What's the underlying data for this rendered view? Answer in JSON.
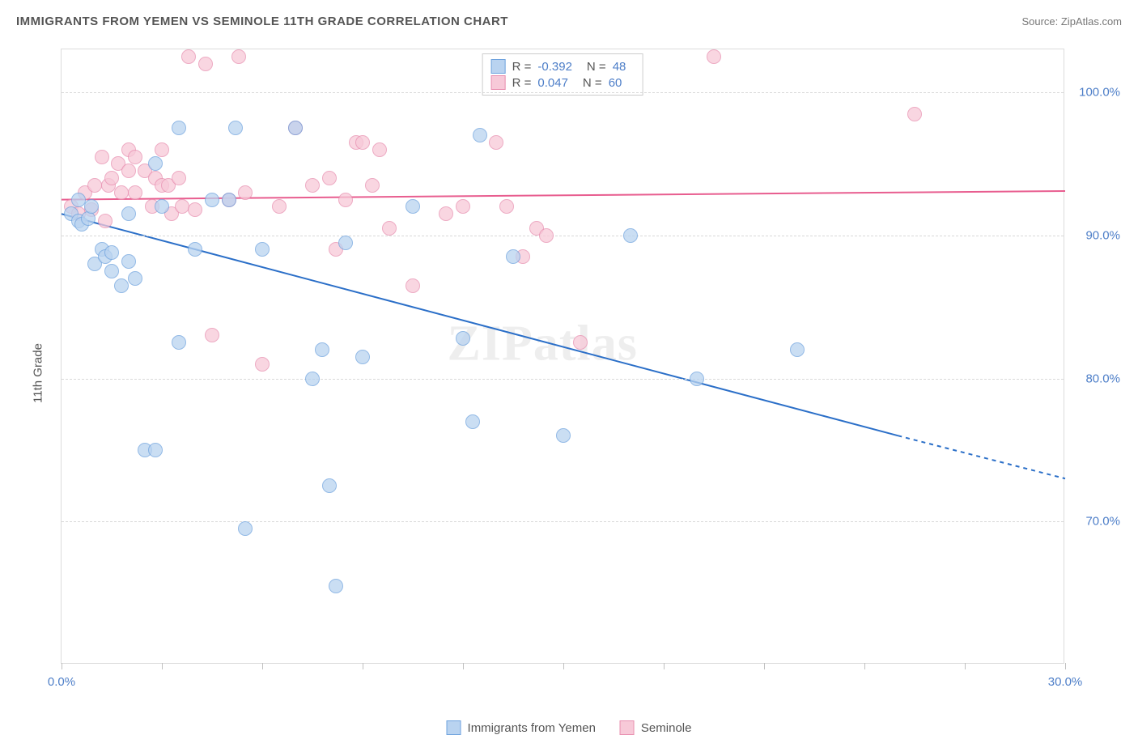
{
  "title": "IMMIGRANTS FROM YEMEN VS SEMINOLE 11TH GRADE CORRELATION CHART",
  "source": "Source: ZipAtlas.com",
  "ylabel": "11th Grade",
  "watermark": "ZIPatlas",
  "chart": {
    "type": "scatter",
    "xlim": [
      0,
      30
    ],
    "ylim": [
      60,
      103
    ],
    "x_ticks": [
      0,
      3,
      6,
      9,
      12,
      15,
      18,
      21,
      24,
      27,
      30
    ],
    "x_tick_labels": {
      "0": "0.0%",
      "30": "30.0%"
    },
    "y_ticks": [
      70,
      80,
      90,
      100
    ],
    "y_tick_labels": {
      "70": "70.0%",
      "80": "80.0%",
      "90": "90.0%",
      "100": "100.0%"
    },
    "grid_color": "#d8d8d8",
    "border_color": "#dcdcdc",
    "marker_radius": 9,
    "series": [
      {
        "key": "yemen",
        "label": "Immigrants from Yemen",
        "color_fill": "#b9d3f0",
        "color_stroke": "#6fa3de",
        "R": "-0.392",
        "N": "48",
        "trend": {
          "x1": 0,
          "y1": 91.5,
          "x2_solid": 25,
          "y2_solid": 76.0,
          "x2_dash": 30,
          "y2_dash": 73.0,
          "color": "#2b6fc8",
          "width": 2
        },
        "points": [
          [
            0.3,
            91.5
          ],
          [
            0.5,
            91.0
          ],
          [
            0.5,
            92.5
          ],
          [
            0.6,
            90.8
          ],
          [
            0.8,
            91.2
          ],
          [
            0.9,
            92.0
          ],
          [
            1.0,
            88.0
          ],
          [
            1.2,
            89.0
          ],
          [
            1.3,
            88.5
          ],
          [
            1.5,
            87.5
          ],
          [
            1.5,
            88.8
          ],
          [
            1.8,
            86.5
          ],
          [
            2.0,
            91.5
          ],
          [
            2.0,
            88.2
          ],
          [
            2.2,
            87.0
          ],
          [
            2.5,
            75.0
          ],
          [
            2.8,
            75.0
          ],
          [
            2.8,
            95.0
          ],
          [
            3.0,
            92.0
          ],
          [
            3.5,
            82.5
          ],
          [
            3.5,
            97.5
          ],
          [
            4.0,
            89.0
          ],
          [
            4.5,
            92.5
          ],
          [
            5.0,
            92.5
          ],
          [
            5.2,
            97.5
          ],
          [
            5.5,
            69.5
          ],
          [
            6.0,
            89.0
          ],
          [
            7.0,
            97.5
          ],
          [
            7.5,
            80.0
          ],
          [
            7.8,
            82.0
          ],
          [
            8.0,
            72.5
          ],
          [
            8.2,
            65.5
          ],
          [
            8.5,
            89.5
          ],
          [
            9.0,
            81.5
          ],
          [
            10.5,
            92.0
          ],
          [
            12.0,
            82.8
          ],
          [
            12.3,
            77.0
          ],
          [
            12.5,
            97.0
          ],
          [
            13.5,
            88.5
          ],
          [
            15.0,
            76.0
          ],
          [
            17.0,
            90.0
          ],
          [
            19.0,
            80.0
          ],
          [
            22.0,
            82.0
          ]
        ]
      },
      {
        "key": "seminole",
        "label": "Seminole",
        "color_fill": "#f7c9d8",
        "color_stroke": "#e88fb0",
        "R": "0.047",
        "N": "60",
        "trend": {
          "x1": 0,
          "y1": 92.5,
          "x2_solid": 30,
          "y2_solid": 93.1,
          "x2_dash": 30,
          "y2_dash": 93.1,
          "color": "#e85d8f",
          "width": 2
        },
        "points": [
          [
            0.3,
            92.0
          ],
          [
            0.5,
            91.5
          ],
          [
            0.7,
            93.0
          ],
          [
            0.9,
            91.8
          ],
          [
            1.0,
            93.5
          ],
          [
            1.2,
            95.5
          ],
          [
            1.3,
            91.0
          ],
          [
            1.4,
            93.5
          ],
          [
            1.5,
            94.0
          ],
          [
            1.7,
            95.0
          ],
          [
            1.8,
            93.0
          ],
          [
            2.0,
            96.0
          ],
          [
            2.0,
            94.5
          ],
          [
            2.2,
            95.5
          ],
          [
            2.2,
            93.0
          ],
          [
            2.5,
            94.5
          ],
          [
            2.7,
            92.0
          ],
          [
            2.8,
            94.0
          ],
          [
            3.0,
            93.5
          ],
          [
            3.0,
            96.0
          ],
          [
            3.2,
            93.5
          ],
          [
            3.3,
            91.5
          ],
          [
            3.5,
            94.0
          ],
          [
            3.6,
            92.0
          ],
          [
            3.8,
            102.5
          ],
          [
            4.0,
            91.8
          ],
          [
            4.3,
            102.0
          ],
          [
            4.5,
            83.0
          ],
          [
            5.0,
            92.5
          ],
          [
            5.3,
            102.5
          ],
          [
            5.5,
            93.0
          ],
          [
            6.0,
            81.0
          ],
          [
            6.5,
            92.0
          ],
          [
            7.0,
            97.5
          ],
          [
            7.5,
            93.5
          ],
          [
            8.0,
            94.0
          ],
          [
            8.2,
            89.0
          ],
          [
            8.5,
            92.5
          ],
          [
            8.8,
            96.5
          ],
          [
            9.0,
            96.5
          ],
          [
            9.3,
            93.5
          ],
          [
            9.5,
            96.0
          ],
          [
            9.8,
            90.5
          ],
          [
            10.5,
            86.5
          ],
          [
            11.5,
            91.5
          ],
          [
            12.0,
            92.0
          ],
          [
            13.0,
            96.5
          ],
          [
            13.3,
            92.0
          ],
          [
            13.8,
            88.5
          ],
          [
            14.2,
            90.5
          ],
          [
            14.5,
            90.0
          ],
          [
            15.5,
            82.5
          ],
          [
            19.5,
            102.5
          ],
          [
            25.5,
            98.5
          ]
        ]
      }
    ]
  }
}
